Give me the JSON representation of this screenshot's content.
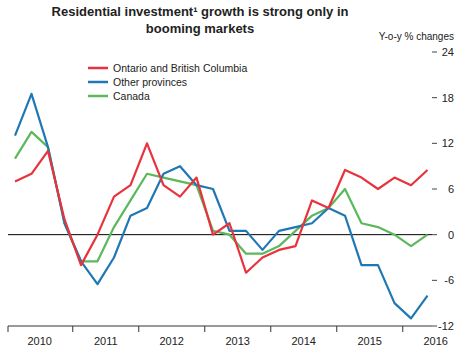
{
  "chart_data": {
    "type": "line",
    "title": "Residential investment¹ growth is strong only in booming markets",
    "y_label": "Y-o-y % changes",
    "categories": [
      null,
      "2010",
      null,
      null,
      null,
      "2011",
      null,
      null,
      null,
      "2012",
      null,
      null,
      null,
      "2013",
      null,
      null,
      null,
      "2014",
      null,
      null,
      null,
      "2015",
      null,
      null,
      null,
      "2016"
    ],
    "series": [
      {
        "name": "Ontario and British Columbia",
        "color": "#e8323c",
        "values": [
          7,
          8,
          11,
          2,
          -4,
          0,
          5,
          6.5,
          12,
          6.5,
          5,
          7.5,
          0,
          1.5,
          -5,
          -3,
          -2,
          -1.5,
          4.5,
          3.5,
          8.5,
          7.5,
          6,
          7.5,
          6.5,
          8.5
        ]
      },
      {
        "name": "Other provinces",
        "color": "#1f78b4",
        "values": [
          13,
          18.5,
          11.5,
          1.5,
          -3.5,
          -6.5,
          -3,
          2.5,
          3.5,
          8,
          9,
          6.5,
          6,
          0.5,
          0.5,
          -2,
          0.5,
          1,
          1.5,
          3.5,
          2.5,
          -4,
          -4,
          -9,
          -11,
          -8
        ]
      },
      {
        "name": "Canada",
        "color": "#5cb85c",
        "values": [
          10,
          13.5,
          11.5,
          1.5,
          -3.5,
          -3.5,
          1,
          4.5,
          8,
          7.5,
          7,
          6.5,
          0.5,
          0,
          -2.5,
          -2.5,
          -1.5,
          0.5,
          2.5,
          3.5,
          6,
          1.5,
          1,
          0,
          -1.5,
          0
        ]
      }
    ],
    "ylim": [
      -12,
      24
    ],
    "yticks": [
      -12,
      -6,
      0,
      6,
      12,
      18,
      24
    ],
    "grid": false,
    "legend": "top-left"
  }
}
